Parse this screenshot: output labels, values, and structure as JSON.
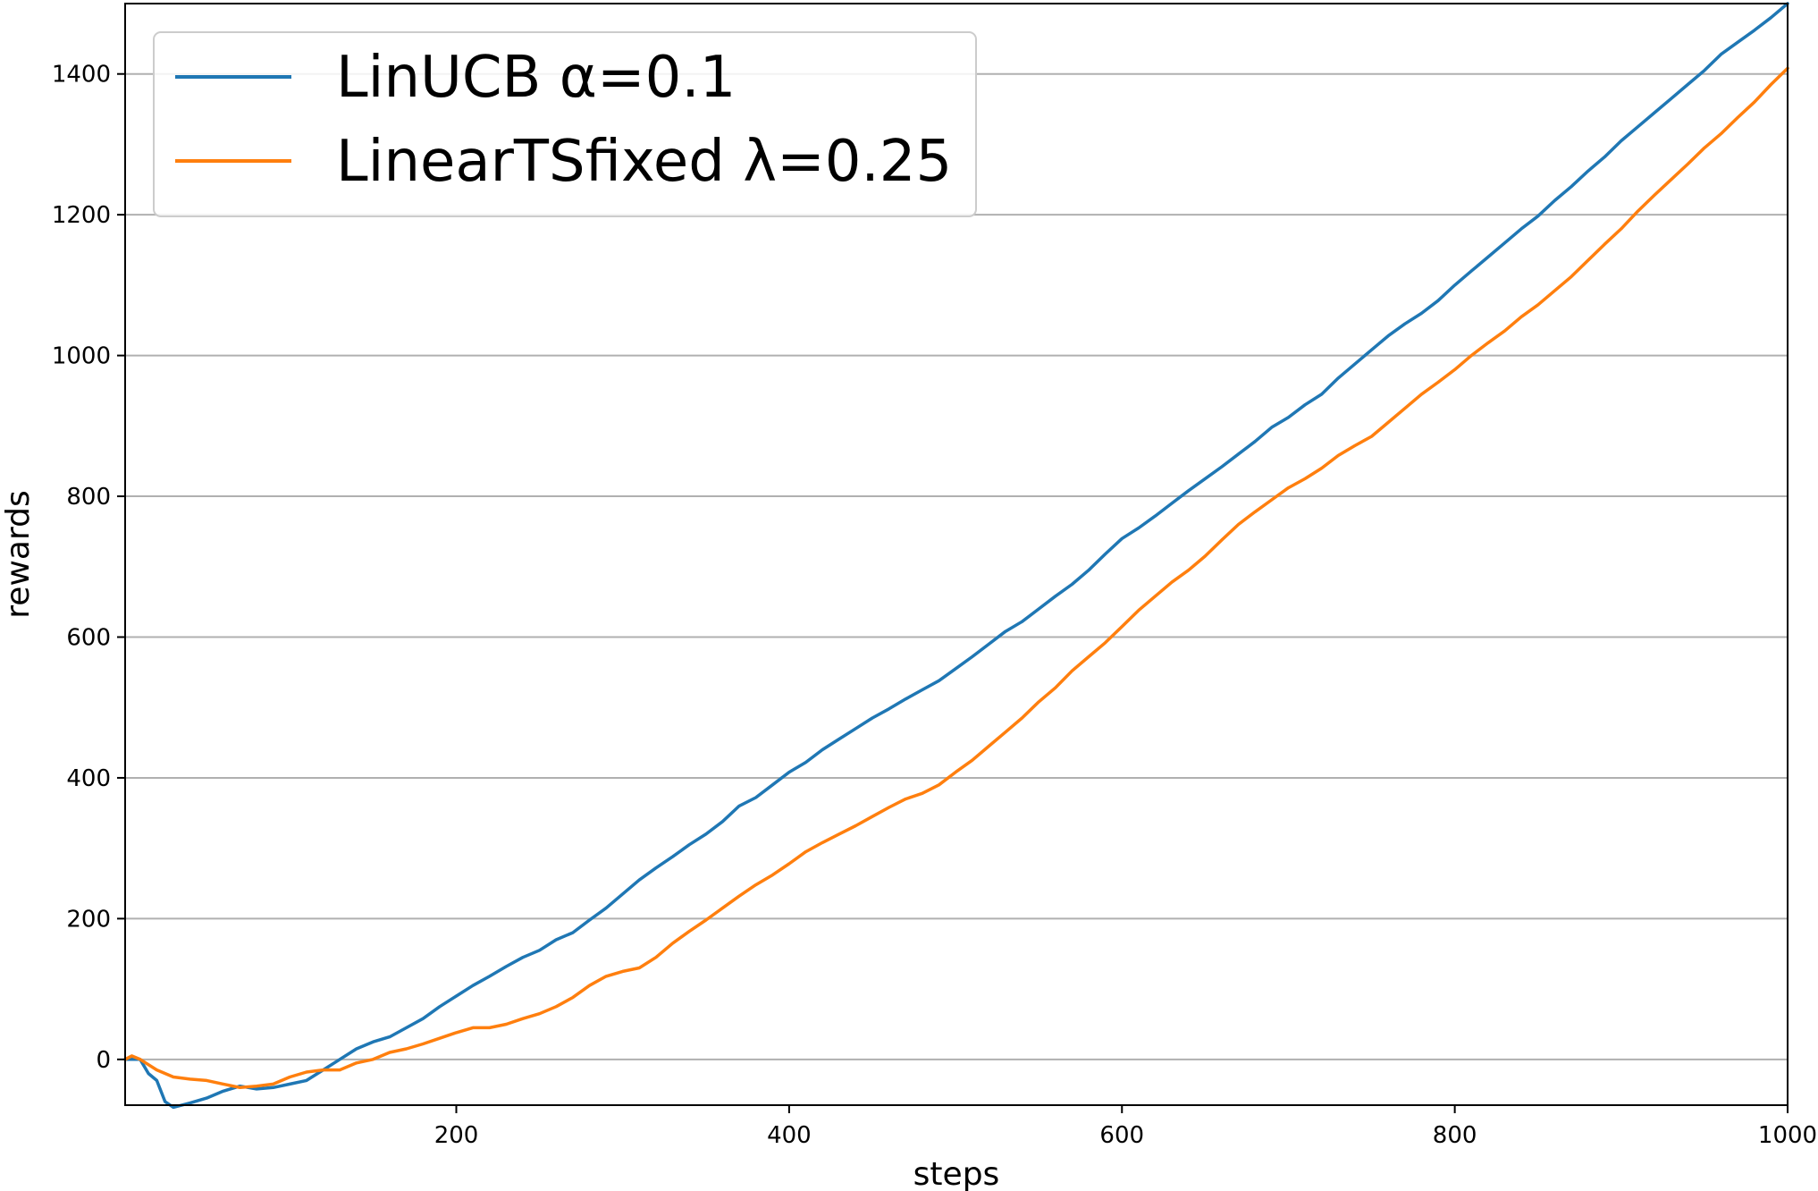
{
  "chart_data": {
    "type": "line",
    "title": "",
    "xlabel": "steps",
    "ylabel": "rewards",
    "xlim": [
      1,
      1000
    ],
    "ylim": [
      -65,
      1500
    ],
    "x_ticks": [
      200,
      400,
      600,
      800,
      1000
    ],
    "y_ticks": [
      0,
      200,
      400,
      600,
      800,
      1000,
      1200,
      1400
    ],
    "grid": "horizontal",
    "legend_position": "upper-left",
    "series": [
      {
        "name": "LinUCB α=0.1",
        "color": "#1f77b4",
        "points": [
          [
            1,
            0
          ],
          [
            10,
            0
          ],
          [
            15,
            -20
          ],
          [
            20,
            -30
          ],
          [
            25,
            -60
          ],
          [
            30,
            -68
          ],
          [
            40,
            -62
          ],
          [
            50,
            -55
          ],
          [
            60,
            -45
          ],
          [
            70,
            -38
          ],
          [
            80,
            -42
          ],
          [
            90,
            -40
          ],
          [
            100,
            -35
          ],
          [
            110,
            -30
          ],
          [
            120,
            -15
          ],
          [
            130,
            0
          ],
          [
            140,
            15
          ],
          [
            150,
            25
          ],
          [
            160,
            32
          ],
          [
            170,
            45
          ],
          [
            180,
            58
          ],
          [
            190,
            75
          ],
          [
            200,
            90
          ],
          [
            210,
            105
          ],
          [
            220,
            118
          ],
          [
            230,
            132
          ],
          [
            240,
            145
          ],
          [
            250,
            155
          ],
          [
            260,
            170
          ],
          [
            270,
            180
          ],
          [
            280,
            198
          ],
          [
            290,
            215
          ],
          [
            300,
            235
          ],
          [
            310,
            255
          ],
          [
            320,
            272
          ],
          [
            330,
            288
          ],
          [
            340,
            305
          ],
          [
            350,
            320
          ],
          [
            360,
            338
          ],
          [
            370,
            360
          ],
          [
            380,
            372
          ],
          [
            390,
            390
          ],
          [
            400,
            408
          ],
          [
            410,
            422
          ],
          [
            420,
            440
          ],
          [
            430,
            455
          ],
          [
            440,
            470
          ],
          [
            450,
            485
          ],
          [
            460,
            498
          ],
          [
            470,
            512
          ],
          [
            480,
            525
          ],
          [
            490,
            538
          ],
          [
            500,
            555
          ],
          [
            510,
            572
          ],
          [
            520,
            590
          ],
          [
            530,
            608
          ],
          [
            540,
            622
          ],
          [
            550,
            640
          ],
          [
            560,
            658
          ],
          [
            570,
            675
          ],
          [
            580,
            695
          ],
          [
            590,
            718
          ],
          [
            600,
            740
          ],
          [
            610,
            755
          ],
          [
            620,
            772
          ],
          [
            630,
            790
          ],
          [
            640,
            808
          ],
          [
            650,
            825
          ],
          [
            660,
            842
          ],
          [
            670,
            860
          ],
          [
            680,
            878
          ],
          [
            690,
            898
          ],
          [
            700,
            912
          ],
          [
            710,
            930
          ],
          [
            720,
            945
          ],
          [
            730,
            968
          ],
          [
            740,
            988
          ],
          [
            750,
            1008
          ],
          [
            760,
            1028
          ],
          [
            770,
            1045
          ],
          [
            780,
            1060
          ],
          [
            790,
            1078
          ],
          [
            800,
            1100
          ],
          [
            810,
            1120
          ],
          [
            820,
            1140
          ],
          [
            830,
            1160
          ],
          [
            840,
            1180
          ],
          [
            850,
            1198
          ],
          [
            860,
            1220
          ],
          [
            870,
            1240
          ],
          [
            880,
            1262
          ],
          [
            890,
            1282
          ],
          [
            900,
            1305
          ],
          [
            910,
            1325
          ],
          [
            920,
            1345
          ],
          [
            930,
            1365
          ],
          [
            940,
            1385
          ],
          [
            950,
            1405
          ],
          [
            960,
            1428
          ],
          [
            970,
            1445
          ],
          [
            980,
            1462
          ],
          [
            990,
            1480
          ],
          [
            1000,
            1500
          ]
        ]
      },
      {
        "name": "LinearTSfixed λ=0.25",
        "color": "#ff7f0e",
        "points": [
          [
            1,
            0
          ],
          [
            5,
            5
          ],
          [
            10,
            0
          ],
          [
            20,
            -15
          ],
          [
            30,
            -25
          ],
          [
            40,
            -28
          ],
          [
            50,
            -30
          ],
          [
            60,
            -35
          ],
          [
            70,
            -40
          ],
          [
            80,
            -38
          ],
          [
            90,
            -35
          ],
          [
            100,
            -25
          ],
          [
            110,
            -18
          ],
          [
            120,
            -15
          ],
          [
            130,
            -15
          ],
          [
            140,
            -5
          ],
          [
            150,
            0
          ],
          [
            160,
            10
          ],
          [
            170,
            15
          ],
          [
            180,
            22
          ],
          [
            190,
            30
          ],
          [
            200,
            38
          ],
          [
            210,
            45
          ],
          [
            220,
            45
          ],
          [
            230,
            50
          ],
          [
            240,
            58
          ],
          [
            250,
            65
          ],
          [
            260,
            75
          ],
          [
            270,
            88
          ],
          [
            280,
            105
          ],
          [
            290,
            118
          ],
          [
            300,
            125
          ],
          [
            310,
            130
          ],
          [
            320,
            145
          ],
          [
            330,
            165
          ],
          [
            340,
            182
          ],
          [
            350,
            198
          ],
          [
            360,
            215
          ],
          [
            370,
            232
          ],
          [
            380,
            248
          ],
          [
            390,
            262
          ],
          [
            400,
            278
          ],
          [
            410,
            295
          ],
          [
            420,
            308
          ],
          [
            430,
            320
          ],
          [
            440,
            332
          ],
          [
            450,
            345
          ],
          [
            460,
            358
          ],
          [
            470,
            370
          ],
          [
            480,
            378
          ],
          [
            490,
            390
          ],
          [
            500,
            408
          ],
          [
            510,
            425
          ],
          [
            520,
            445
          ],
          [
            530,
            465
          ],
          [
            540,
            485
          ],
          [
            550,
            508
          ],
          [
            560,
            528
          ],
          [
            570,
            552
          ],
          [
            580,
            572
          ],
          [
            590,
            592
          ],
          [
            600,
            615
          ],
          [
            610,
            638
          ],
          [
            620,
            658
          ],
          [
            630,
            678
          ],
          [
            640,
            695
          ],
          [
            650,
            715
          ],
          [
            660,
            738
          ],
          [
            670,
            760
          ],
          [
            680,
            778
          ],
          [
            690,
            795
          ],
          [
            700,
            812
          ],
          [
            710,
            825
          ],
          [
            720,
            840
          ],
          [
            730,
            858
          ],
          [
            740,
            872
          ],
          [
            750,
            885
          ],
          [
            760,
            905
          ],
          [
            770,
            925
          ],
          [
            780,
            945
          ],
          [
            790,
            962
          ],
          [
            800,
            980
          ],
          [
            810,
            1000
          ],
          [
            820,
            1018
          ],
          [
            830,
            1035
          ],
          [
            840,
            1055
          ],
          [
            850,
            1072
          ],
          [
            860,
            1092
          ],
          [
            870,
            1112
          ],
          [
            880,
            1135
          ],
          [
            890,
            1158
          ],
          [
            900,
            1180
          ],
          [
            910,
            1205
          ],
          [
            920,
            1228
          ],
          [
            930,
            1250
          ],
          [
            940,
            1272
          ],
          [
            950,
            1295
          ],
          [
            960,
            1315
          ],
          [
            970,
            1338
          ],
          [
            980,
            1360
          ],
          [
            990,
            1385
          ],
          [
            1000,
            1408
          ]
        ]
      }
    ]
  }
}
